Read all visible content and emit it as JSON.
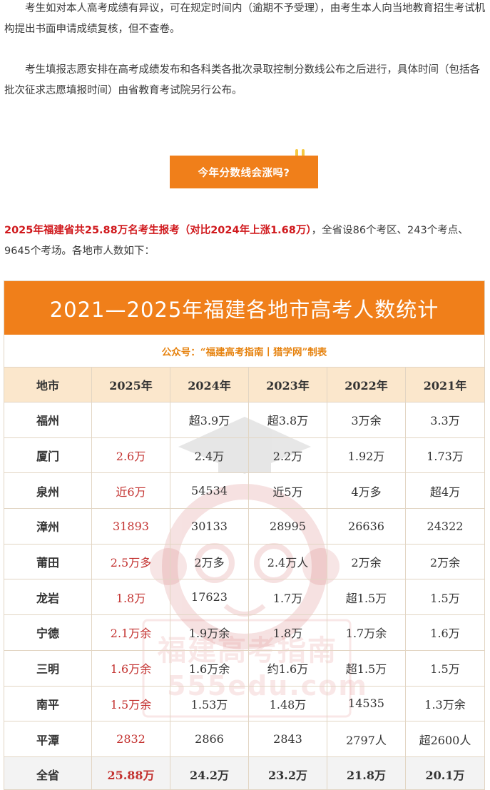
{
  "paragraphs": {
    "p1": "考生如对本人高考成绩有异议，可在规定时间内（逾期不予受理），由考生本人向当地教育招生考试机构提出书面申请成绩复核，但不查卷。",
    "p2": "考生填报志愿安排在高考成绩发布和各科类各批次录取控制分数线公布之后进行，具体时间（包括各批次征求志愿填报时间）由省教育考试院另行公布。"
  },
  "cta": {
    "label": "今年分数线会涨吗?"
  },
  "intro": {
    "highlight": "2025年福建省共25.88万名考生报考（对比2024年上涨1.68万）",
    "rest": "，全省设86个考区、243个考点、9645个考场。各地市人数如下："
  },
  "table": {
    "title": "2021—2025年福建各地市高考人数统计",
    "credit": "公众号：“福建高考指南丨猎学网”制表",
    "headers": [
      "地市",
      "2025年",
      "2024年",
      "2023年",
      "2022年",
      "2021年"
    ],
    "rows": [
      [
        "福州",
        "",
        "超3.9万",
        "超3.8万",
        "3万余",
        "3.3万"
      ],
      [
        "厦门",
        "2.6万",
        "2.4万",
        "2.2万",
        "1.92万",
        "1.73万"
      ],
      [
        "泉州",
        "近6万",
        "54534",
        "近5万",
        "4万多",
        "超4万"
      ],
      [
        "漳州",
        "31893",
        "30133",
        "28995",
        "26636",
        "24322"
      ],
      [
        "莆田",
        "2.5万多",
        "2万多",
        "2.4万人",
        "2万余",
        "2万余"
      ],
      [
        "龙岩",
        "1.8万",
        "17623",
        "1.7万",
        "超1.5万",
        "1.5万"
      ],
      [
        "宁德",
        "2.1万余",
        "1.9万余",
        "1.8万",
        "1.7万余",
        "1.6万"
      ],
      [
        "三明",
        "1.6万余",
        "1.6万余",
        "约1.6万",
        "超1.5万",
        "1.5万"
      ],
      [
        "南平",
        "1.5万余",
        "1.53万",
        "1.48万",
        "14535",
        "1.3万余"
      ],
      [
        "平潭",
        "2832",
        "2866",
        "2843",
        "2797人",
        "超2600人"
      ]
    ],
    "total": [
      "全省",
      "25.88万",
      "24.2万",
      "23.2万",
      "21.8万",
      "20.1万"
    ]
  },
  "watermark": {
    "line1": "福建高考指南",
    "line2": "555edu.com"
  },
  "colors": {
    "accent": "#f07f1a",
    "highlight_red": "#d0191d",
    "value_red": "#c3312f",
    "header_bg": "#fbe7cc"
  }
}
